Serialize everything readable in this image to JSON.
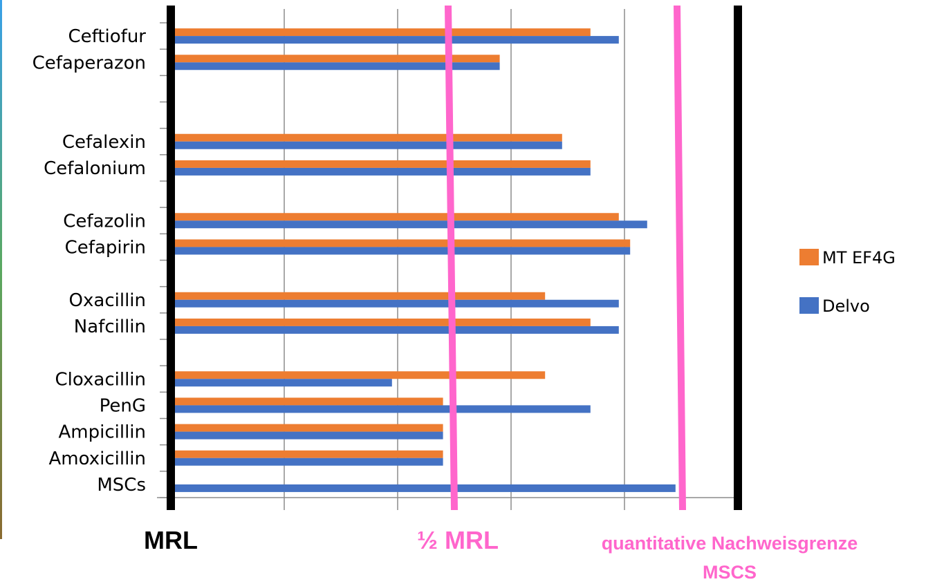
{
  "chart_data": {
    "type": "bar",
    "orientation": "horizontal",
    "categories": [
      "Ceftiofur",
      "Cefaperazon",
      "",
      "",
      "Cefalexin",
      "Cefalonium",
      "",
      "Cefazolin",
      "Cefapirin",
      "",
      "Oxacillin",
      "Nafcillin",
      "",
      "Cloxacillin",
      "PenG",
      "Ampicillin",
      "Amoxicillin",
      "MSCs"
    ],
    "series": [
      {
        "name": "MT EF4G",
        "color": "#ed7d31",
        "values": [
          3.7,
          2.9,
          null,
          null,
          3.45,
          3.7,
          null,
          3.95,
          4.05,
          null,
          3.3,
          3.7,
          null,
          3.3,
          2.4,
          2.4,
          2.4,
          null
        ]
      },
      {
        "name": "Delvo",
        "color": "#4472c4",
        "values": [
          3.95,
          2.9,
          null,
          null,
          3.45,
          3.7,
          null,
          4.2,
          4.05,
          null,
          3.95,
          3.95,
          null,
          1.95,
          3.7,
          2.4,
          2.4,
          4.45
        ]
      }
    ],
    "xlim": [
      0,
      5
    ],
    "grid": true,
    "legend_position": "right",
    "reference_lines": [
      {
        "label": "MRL",
        "color": "#000000"
      },
      {
        "label": "½ MRL",
        "color": "#ff66cc"
      },
      {
        "label": "quantitative Nachweisgrenze MSCS",
        "color": "#ff66cc"
      }
    ]
  },
  "annotations": {
    "mrl": "MRL",
    "half_mrl": "½ MRL",
    "nachweis_line1": "quantitative Nachweisgrenze",
    "nachweis_line2": "MSCS"
  }
}
